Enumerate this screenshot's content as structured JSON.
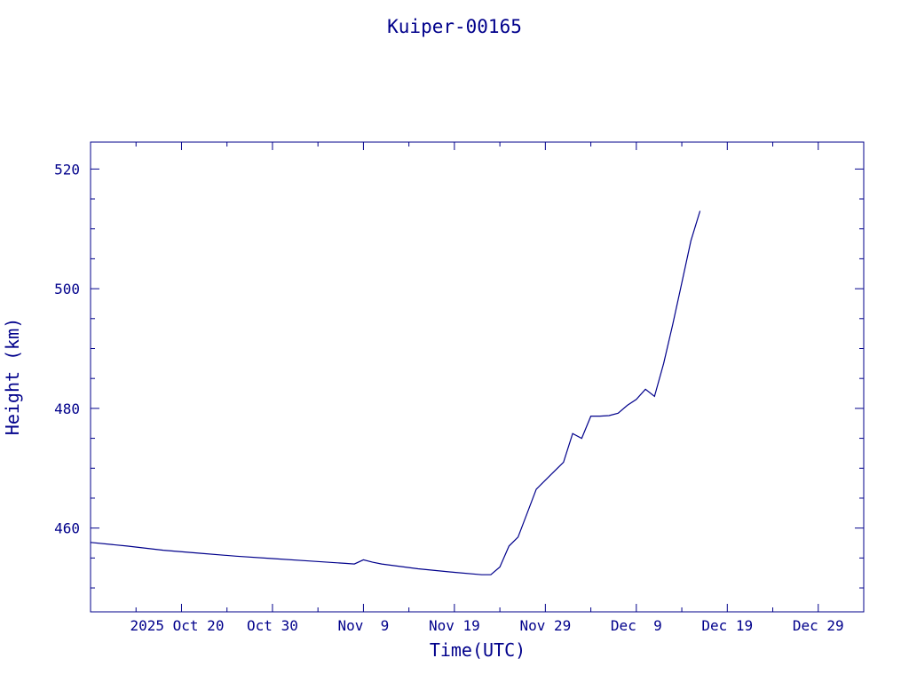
{
  "chart_data": {
    "type": "line",
    "title": "Kuiper-00165",
    "xlabel": "Time(UTC)",
    "ylabel": "Height (km)",
    "x_tick_labels": [
      "2025 Oct 20",
      "Oct 30",
      "Nov  9",
      "Nov 19",
      "Nov 29",
      "Dec  9",
      "Dec 19",
      "Dec 29"
    ],
    "y_tick_labels": [
      "460",
      "480",
      "500",
      "520"
    ],
    "xlim": [
      "2025-10-10",
      "2026-01-03"
    ],
    "ylim": [
      446,
      524.5
    ],
    "grid": false,
    "legend": "none",
    "colors": {
      "axes": "#00008b",
      "line": "#00008b"
    },
    "series": [
      {
        "x": [
          "2025-10-10",
          "2025-10-14",
          "2025-10-18",
          "2025-10-22",
          "2025-10-26",
          "2025-10-30",
          "2025-11-03",
          "2025-11-07",
          "2025-11-08",
          "2025-11-09",
          "2025-11-10",
          "2025-11-11",
          "2025-11-15",
          "2025-11-19",
          "2025-11-22",
          "2025-11-23",
          "2025-11-24",
          "2025-11-25",
          "2025-11-26",
          "2025-11-27",
          "2025-11-28",
          "2025-11-29",
          "2025-11-30",
          "2025-12-01",
          "2025-12-02",
          "2025-12-03",
          "2025-12-04",
          "2025-12-05",
          "2025-12-06",
          "2025-12-07",
          "2025-12-08",
          "2025-12-09",
          "2025-12-10",
          "2025-12-11",
          "2025-12-12",
          "2025-12-13",
          "2025-12-14",
          "2025-12-15",
          "2025-12-16"
        ],
        "y": [
          457.6,
          457.0,
          456.3,
          455.8,
          455.3,
          454.9,
          454.5,
          454.1,
          454.0,
          454.7,
          454.3,
          454.0,
          453.2,
          452.6,
          452.2,
          452.2,
          453.5,
          457.0,
          458.5,
          462.5,
          466.5,
          468.0,
          469.5,
          471.0,
          475.8,
          475.0,
          478.7,
          478.7,
          478.8,
          479.2,
          480.5,
          481.5,
          483.2,
          482.0,
          487.5,
          494.0,
          501.0,
          508.0,
          513.0
        ]
      }
    ]
  }
}
